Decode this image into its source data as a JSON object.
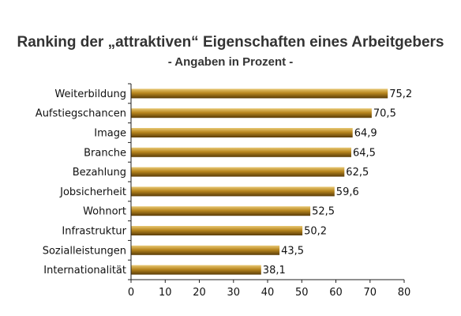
{
  "chart_data": {
    "type": "bar",
    "orientation": "horizontal",
    "title": "Ranking der „attraktiven“ Eigenschaften eines Arbeitgebers",
    "subtitle": "- Angaben in Prozent -",
    "categories": [
      "Weiterbildung",
      "Aufstiegschancen",
      "Image",
      "Branche",
      "Bezahlung",
      "Jobsicherheit",
      "Wohnort",
      "Infrastruktur",
      "Sozialleistungen",
      "Internationalität"
    ],
    "values": [
      75.2,
      70.5,
      64.9,
      64.5,
      62.5,
      59.6,
      52.5,
      50.2,
      43.5,
      38.1
    ],
    "value_labels": [
      "75,2",
      "70,5",
      "64,9",
      "64,5",
      "62,5",
      "59,6",
      "52,5",
      "50,2",
      "43,5",
      "38,1"
    ],
    "xlim": [
      0,
      80
    ],
    "xticks": [
      0,
      10,
      20,
      30,
      40,
      50,
      60,
      70,
      80
    ],
    "xlabel": "",
    "ylabel": "",
    "grid": false,
    "legend": "none",
    "colors": {
      "bar_light": "#e8c874",
      "bar_mid": "#b8861e",
      "bar_dark": "#5a3c08",
      "axis": "#222222"
    }
  }
}
